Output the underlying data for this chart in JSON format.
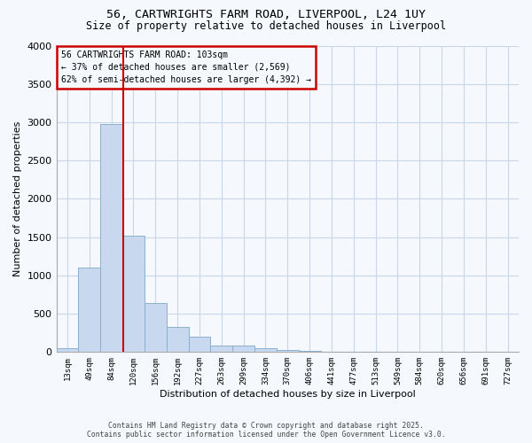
{
  "title_line1": "56, CARTWRIGHTS FARM ROAD, LIVERPOOL, L24 1UY",
  "title_line2": "Size of property relative to detached houses in Liverpool",
  "xlabel": "Distribution of detached houses by size in Liverpool",
  "ylabel": "Number of detached properties",
  "bar_labels": [
    "13sqm",
    "49sqm",
    "84sqm",
    "120sqm",
    "156sqm",
    "192sqm",
    "227sqm",
    "263sqm",
    "299sqm",
    "334sqm",
    "370sqm",
    "406sqm",
    "441sqm",
    "477sqm",
    "513sqm",
    "549sqm",
    "584sqm",
    "620sqm",
    "656sqm",
    "691sqm",
    "727sqm"
  ],
  "bar_values": [
    55,
    1100,
    2980,
    1520,
    640,
    330,
    195,
    90,
    85,
    45,
    25,
    15,
    8,
    3,
    2,
    1,
    1,
    0,
    0,
    0,
    0
  ],
  "bar_color": "#c8d8ee",
  "bar_edge_color": "#8ab0d0",
  "grid_color": "#c8d8e8",
  "vline_color": "#cc0000",
  "annotation_text": "56 CARTWRIGHTS FARM ROAD: 103sqm\n← 37% of detached houses are smaller (2,569)\n62% of semi-detached houses are larger (4,392) →",
  "annotation_box_color": "#cc0000",
  "ylim": [
    0,
    4000
  ],
  "yticks": [
    0,
    500,
    1000,
    1500,
    2000,
    2500,
    3000,
    3500,
    4000
  ],
  "footer_line1": "Contains HM Land Registry data © Crown copyright and database right 2025.",
  "footer_line2": "Contains public sector information licensed under the Open Government Licence v3.0.",
  "background_color": "#f5f8fc"
}
